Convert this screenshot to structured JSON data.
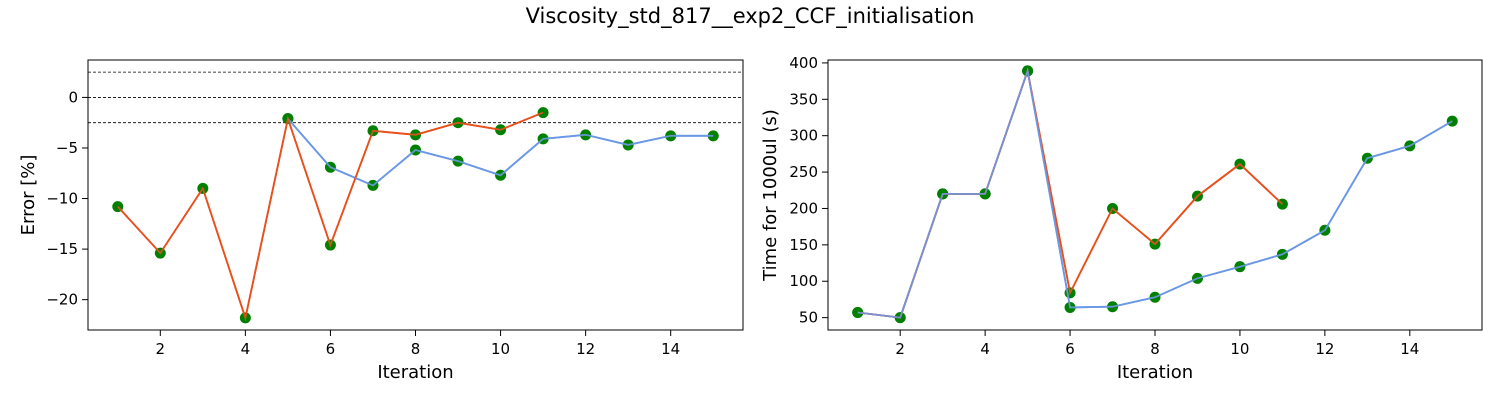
{
  "figure": {
    "title": "Viscosity_std_817__exp2_CCF_initialisation"
  },
  "colors": {
    "orange": "#e8501e",
    "blue": "#6b98e4",
    "marker": "#008000",
    "refline": "#000000"
  },
  "chart_data": [
    {
      "type": "line",
      "xlabel": "Iteration",
      "ylabel": "Error [%]",
      "xlim": [
        0.3,
        15.7
      ],
      "ylim": [
        -23,
        3.7
      ],
      "xticks": [
        2,
        4,
        6,
        8,
        10,
        12,
        14
      ],
      "yticks": [
        0,
        -5,
        -10,
        -15,
        -20
      ],
      "reference_lines": [
        2.5,
        0,
        -2.5
      ],
      "grid": false,
      "series": [
        {
          "color_key": "blue",
          "x": [
            5,
            6,
            7,
            8,
            9,
            10,
            11,
            12,
            13,
            14,
            15
          ],
          "y": [
            -2.1,
            -6.9,
            -8.7,
            -5.2,
            -6.3,
            -7.7,
            -4.1,
            -3.7,
            -4.7,
            -3.8,
            -3.8
          ]
        },
        {
          "color_key": "orange",
          "x": [
            1,
            2,
            3,
            4,
            5,
            6,
            7,
            8,
            9,
            10,
            11
          ],
          "y": [
            -10.8,
            -15.4,
            -9.0,
            -21.8,
            -2.1,
            -14.6,
            -3.3,
            -3.7,
            -2.5,
            -3.2,
            -1.5
          ]
        }
      ]
    },
    {
      "type": "line",
      "xlabel": "Iteration",
      "ylabel": "Time for 1000ul (s)",
      "xlim": [
        0.3,
        15.7
      ],
      "ylim": [
        33,
        404
      ],
      "xticks": [
        2,
        4,
        6,
        8,
        10,
        12,
        14
      ],
      "yticks": [
        50,
        100,
        150,
        200,
        250,
        300,
        350,
        400
      ],
      "reference_lines": [],
      "grid": false,
      "series": [
        {
          "color_key": "orange",
          "x": [
            1,
            2,
            3,
            4,
            5,
            6,
            7,
            8,
            9,
            10,
            11
          ],
          "y": [
            57,
            50,
            220,
            220,
            389,
            84,
            200,
            151,
            217,
            261,
            206
          ]
        },
        {
          "color_key": "blue",
          "x": [
            1,
            2,
            3,
            4,
            5,
            6,
            7,
            8,
            9,
            10,
            11,
            12,
            13,
            14,
            15
          ],
          "y": [
            57,
            50,
            220,
            220,
            389,
            64,
            65,
            78,
            104,
            120,
            137,
            170,
            269,
            286,
            320
          ]
        }
      ]
    }
  ]
}
